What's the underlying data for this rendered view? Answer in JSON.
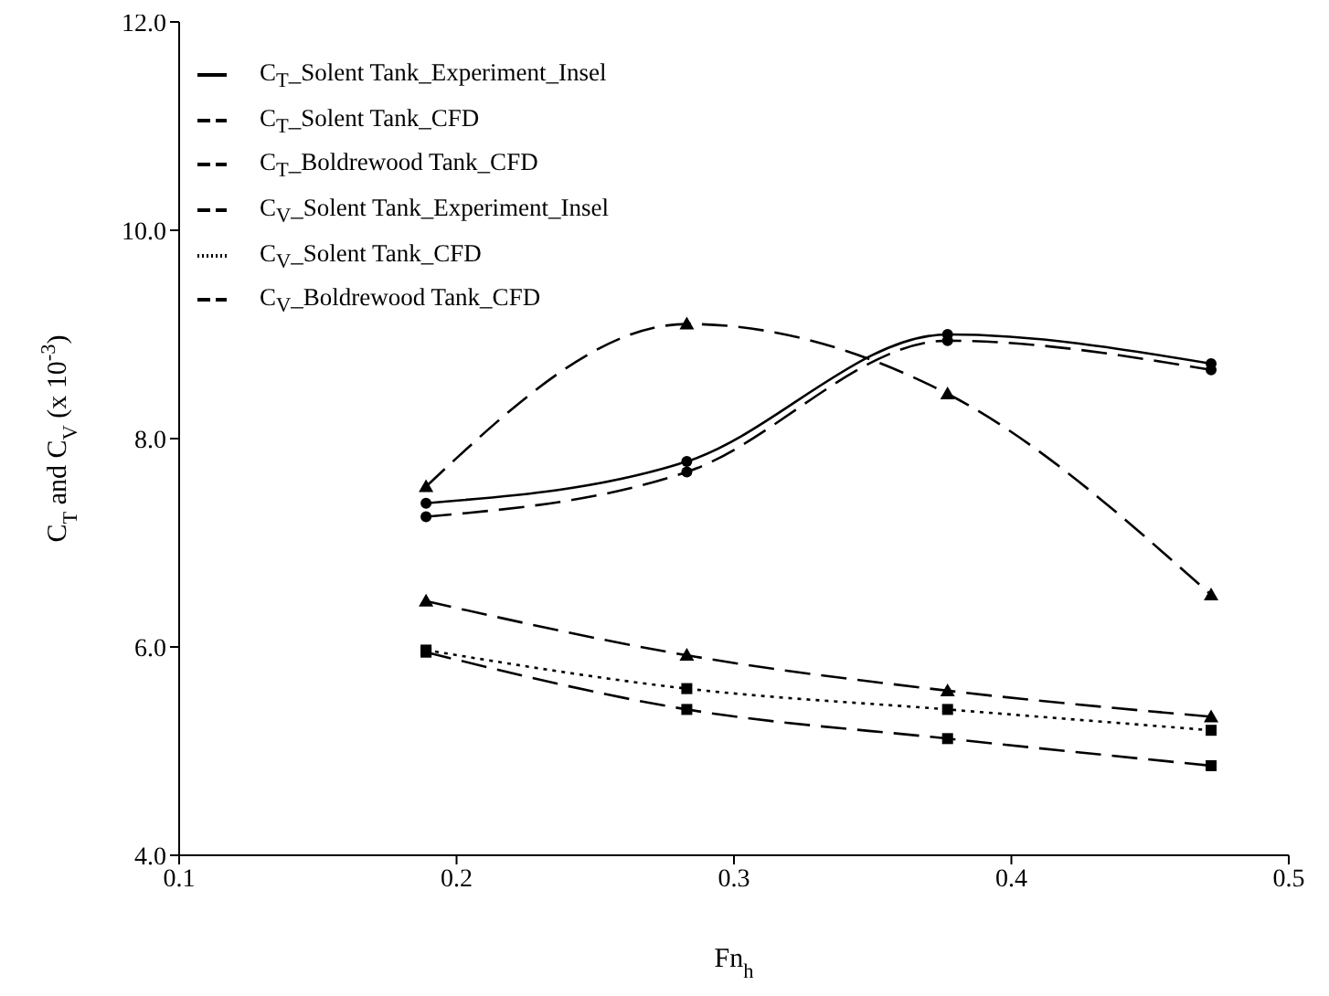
{
  "chart_data": {
    "type": "line",
    "xlabel": "Fn$_{h}$",
    "ylabel": "C$_{T}$ and C$_{V}$ (x 10$^{-3}$)",
    "x": [
      0.189,
      0.283,
      0.377,
      0.472
    ],
    "xlim": [
      0.1,
      0.5
    ],
    "xticks": [
      0.1,
      0.2,
      0.3,
      0.4,
      0.5
    ],
    "ylim": [
      4,
      12
    ],
    "yticks": [
      {
        "value": 4,
        "label": "4.0"
      },
      {
        "value": 6,
        "label": "6.0"
      },
      {
        "value": 8,
        "label": "8.0"
      },
      {
        "value": 10,
        "label": "10.0"
      },
      {
        "value": 12,
        "label": "12.0"
      }
    ],
    "legend": "top left",
    "series": [
      {
        "name": "C$_{T}$_Solent Tank_Experiment_Insel",
        "color": "#000000",
        "marker": "circle",
        "line_style": "solid",
        "values": [
          7.38,
          7.78,
          9.0,
          8.72
        ]
      },
      {
        "name": "C$_{T}$_Solent Tank_CFD",
        "color": "#000000",
        "marker": "circle",
        "line_style": "dashed",
        "values": [
          7.25,
          7.68,
          8.94,
          8.66
        ]
      },
      {
        "name": "C$_{T}$_Boldrewood Tank_CFD",
        "color": "#000000",
        "marker": "triangle",
        "line_style": "dashed",
        "values": [
          7.54,
          9.1,
          8.43,
          6.5
        ]
      },
      {
        "name": "C$_{V}$_Solent Tank_Experiment_Insel",
        "color": "#000000",
        "marker": "triangle",
        "line_style": "dashed",
        "values": [
          6.44,
          5.92,
          5.58,
          5.33
        ]
      },
      {
        "name": "C$_{V}$_Solent Tank_CFD",
        "color": "#000000",
        "marker": "square",
        "line_style": "dotted",
        "values": [
          5.97,
          5.6,
          5.4,
          5.2
        ]
      },
      {
        "name": "C$_{V}$_Boldrewood Tank_CFD",
        "color": "#000000",
        "marker": "square",
        "line_style": "dashed",
        "values": [
          5.95,
          5.4,
          5.12,
          4.86
        ]
      }
    ]
  }
}
